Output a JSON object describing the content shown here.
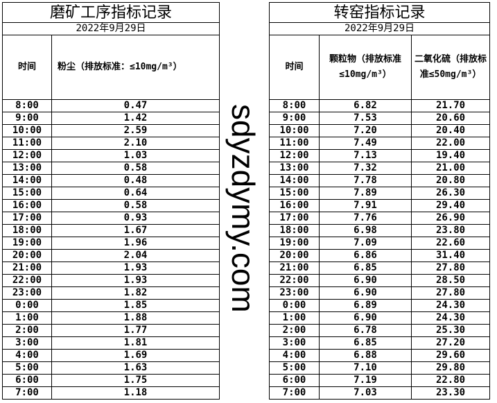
{
  "left_table": {
    "title": "磨矿工序指标记录",
    "date": "2022年9月29日",
    "headers": [
      "时间",
      "粉尘（排放标准：≤10mg/m³）"
    ],
    "rows": [
      [
        "8:00",
        "0.47"
      ],
      [
        "9:00",
        "1.42"
      ],
      [
        "10:00",
        "2.59"
      ],
      [
        "11:00",
        "2.10"
      ],
      [
        "12:00",
        "1.03"
      ],
      [
        "13:00",
        "0.58"
      ],
      [
        "14:00",
        "0.48"
      ],
      [
        "15:00",
        "0.64"
      ],
      [
        "16:00",
        "0.58"
      ],
      [
        "17:00",
        "0.93"
      ],
      [
        "18:00",
        "1.67"
      ],
      [
        "19:00",
        "1.96"
      ],
      [
        "20:00",
        "2.04"
      ],
      [
        "21:00",
        "1.93"
      ],
      [
        "22:00",
        "1.93"
      ],
      [
        "23:00",
        "1.82"
      ],
      [
        "0:00",
        "1.85"
      ],
      [
        "1:00",
        "1.88"
      ],
      [
        "2:00",
        "1.77"
      ],
      [
        "3:00",
        "1.81"
      ],
      [
        "4:00",
        "1.69"
      ],
      [
        "5:00",
        "1.63"
      ],
      [
        "6:00",
        "1.75"
      ],
      [
        "7:00",
        "1.18"
      ]
    ]
  },
  "right_table": {
    "title": "转窑指标记录",
    "date": "2022年9月29日",
    "headers": [
      "时间",
      "颗粒物（排放标准≤10mg/m³）",
      "二氧化硫（排放标准≤50mg/m³）"
    ],
    "rows": [
      [
        "8:00",
        "6.82",
        "21.70"
      ],
      [
        "9:00",
        "7.53",
        "20.60"
      ],
      [
        "10:00",
        "7.20",
        "20.40"
      ],
      [
        "11:00",
        "7.49",
        "22.00"
      ],
      [
        "12:00",
        "7.13",
        "19.40"
      ],
      [
        "13:00",
        "7.32",
        "21.00"
      ],
      [
        "14:00",
        "7.78",
        "20.80"
      ],
      [
        "15:00",
        "7.89",
        "26.30"
      ],
      [
        "16:00",
        "7.91",
        "29.40"
      ],
      [
        "17:00",
        "7.76",
        "26.90"
      ],
      [
        "18:00",
        "6.98",
        "23.80"
      ],
      [
        "19:00",
        "7.09",
        "22.60"
      ],
      [
        "20:00",
        "6.86",
        "31.40"
      ],
      [
        "21:00",
        "6.85",
        "27.80"
      ],
      [
        "22:00",
        "6.90",
        "28.50"
      ],
      [
        "23:00",
        "6.90",
        "27.80"
      ],
      [
        "0:00",
        "6.89",
        "24.30"
      ],
      [
        "1:00",
        "6.90",
        "24.30"
      ],
      [
        "2:00",
        "6.78",
        "25.30"
      ],
      [
        "3:00",
        "6.85",
        "27.20"
      ],
      [
        "4:00",
        "6.88",
        "29.60"
      ],
      [
        "5:00",
        "7.10",
        "29.80"
      ],
      [
        "6:00",
        "7.19",
        "22.80"
      ],
      [
        "7:00",
        "7.03",
        "23.30"
      ]
    ]
  },
  "watermark": "sdyzdymy.com"
}
